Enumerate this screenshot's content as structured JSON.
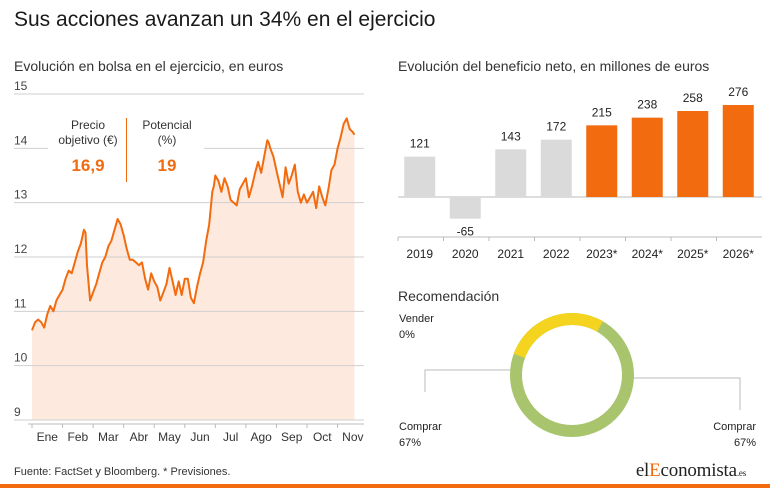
{
  "title": "Sus acciones avanzan un 34% en el ejercicio",
  "source": "Fuente: FactSet y Bloomberg. * Previsiones.",
  "logo": {
    "prefix": "el",
    "accent": "E",
    "rest": "conomista",
    "tld": ".es"
  },
  "colors": {
    "accent": "#f26b0f",
    "area_fill": "#fde9dd",
    "bar_grey": "#dadada",
    "donut_yellow": "#f5d41f",
    "donut_green": "#a8c56e"
  },
  "stock": {
    "subtitle": "Evolución en bolsa en el ejercicio, en euros",
    "price_target_label": "Precio objetivo (€)",
    "price_target_value": "16,9",
    "potential_label": "Potencial (%)",
    "potential_value": "19",
    "chart_data": {
      "type": "area",
      "y_range": [
        9,
        15
      ],
      "y_ticks": [
        "9",
        "10",
        "11",
        "12",
        "13",
        "14",
        "15"
      ],
      "x_labels": [
        "Ene",
        "Feb",
        "Mar",
        "Abr",
        "May",
        "Jun",
        "Jul",
        "Ago",
        "Sep",
        "Oct",
        "Nov"
      ],
      "x_range": [
        0,
        10.8
      ],
      "points": [
        [
          0.0,
          10.65
        ],
        [
          0.1,
          10.8
        ],
        [
          0.2,
          10.85
        ],
        [
          0.3,
          10.8
        ],
        [
          0.4,
          10.7
        ],
        [
          0.5,
          10.95
        ],
        [
          0.6,
          11.1
        ],
        [
          0.7,
          11.0
        ],
        [
          0.8,
          11.2
        ],
        [
          0.9,
          11.3
        ],
        [
          1.0,
          11.4
        ],
        [
          1.1,
          11.6
        ],
        [
          1.2,
          11.75
        ],
        [
          1.3,
          11.7
        ],
        [
          1.4,
          11.9
        ],
        [
          1.5,
          12.1
        ],
        [
          1.6,
          12.25
        ],
        [
          1.7,
          12.5
        ],
        [
          1.75,
          12.45
        ],
        [
          1.8,
          11.85
        ],
        [
          1.9,
          11.2
        ],
        [
          2.0,
          11.35
        ],
        [
          2.1,
          11.5
        ],
        [
          2.2,
          11.7
        ],
        [
          2.3,
          11.9
        ],
        [
          2.4,
          12.0
        ],
        [
          2.5,
          12.2
        ],
        [
          2.6,
          12.3
        ],
        [
          2.7,
          12.5
        ],
        [
          2.8,
          12.7
        ],
        [
          2.9,
          12.6
        ],
        [
          3.0,
          12.4
        ],
        [
          3.1,
          12.15
        ],
        [
          3.2,
          11.95
        ],
        [
          3.3,
          11.95
        ],
        [
          3.4,
          11.9
        ],
        [
          3.5,
          11.85
        ],
        [
          3.6,
          11.9
        ],
        [
          3.7,
          11.6
        ],
        [
          3.8,
          11.4
        ],
        [
          3.9,
          11.7
        ],
        [
          4.0,
          11.55
        ],
        [
          4.1,
          11.45
        ],
        [
          4.2,
          11.2
        ],
        [
          4.3,
          11.35
        ],
        [
          4.4,
          11.5
        ],
        [
          4.5,
          11.8
        ],
        [
          4.6,
          11.55
        ],
        [
          4.7,
          11.3
        ],
        [
          4.8,
          11.55
        ],
        [
          4.9,
          11.3
        ],
        [
          5.0,
          11.6
        ],
        [
          5.1,
          11.6
        ],
        [
          5.2,
          11.25
        ],
        [
          5.3,
          11.15
        ],
        [
          5.4,
          11.45
        ],
        [
          5.5,
          11.7
        ],
        [
          5.6,
          11.9
        ],
        [
          5.7,
          12.3
        ],
        [
          5.8,
          12.6
        ],
        [
          5.9,
          13.2
        ],
        [
          5.95,
          13.3
        ],
        [
          6.0,
          13.5
        ],
        [
          6.1,
          13.4
        ],
        [
          6.2,
          13.2
        ],
        [
          6.3,
          13.45
        ],
        [
          6.4,
          13.3
        ],
        [
          6.5,
          13.05
        ],
        [
          6.6,
          13.0
        ],
        [
          6.7,
          12.95
        ],
        [
          6.8,
          13.25
        ],
        [
          6.9,
          13.35
        ],
        [
          7.0,
          13.45
        ],
        [
          7.1,
          13.1
        ],
        [
          7.2,
          13.3
        ],
        [
          7.3,
          13.55
        ],
        [
          7.4,
          13.75
        ],
        [
          7.5,
          13.55
        ],
        [
          7.6,
          13.85
        ],
        [
          7.7,
          14.15
        ],
        [
          7.75,
          14.1
        ],
        [
          7.8,
          14.0
        ],
        [
          7.9,
          13.85
        ],
        [
          8.0,
          13.6
        ],
        [
          8.1,
          13.35
        ],
        [
          8.2,
          13.1
        ],
        [
          8.3,
          13.65
        ],
        [
          8.4,
          13.35
        ],
        [
          8.5,
          13.5
        ],
        [
          8.6,
          13.7
        ],
        [
          8.7,
          13.2
        ],
        [
          8.8,
          13.0
        ],
        [
          8.9,
          13.15
        ],
        [
          9.0,
          13.0
        ],
        [
          9.1,
          13.1
        ],
        [
          9.2,
          13.2
        ],
        [
          9.3,
          12.9
        ],
        [
          9.4,
          13.3
        ],
        [
          9.5,
          13.1
        ],
        [
          9.6,
          12.95
        ],
        [
          9.7,
          13.25
        ],
        [
          9.8,
          13.6
        ],
        [
          9.9,
          13.7
        ],
        [
          10.0,
          14.0
        ],
        [
          10.1,
          14.2
        ],
        [
          10.2,
          14.45
        ],
        [
          10.3,
          14.55
        ],
        [
          10.4,
          14.35
        ],
        [
          10.5,
          14.3
        ],
        [
          10.55,
          14.25
        ]
      ]
    }
  },
  "profit": {
    "subtitle": "Evolución del beneficio neto, en millones de euros",
    "chart_data": {
      "type": "bar",
      "categories": [
        "2019",
        "2020",
        "2021",
        "2022",
        "2023*",
        "2024*",
        "2025*",
        "2026*"
      ],
      "values": [
        121,
        -65,
        143,
        172,
        215,
        238,
        258,
        276
      ],
      "value_labels": [
        "121",
        "-65",
        "143",
        "172",
        "215",
        "238",
        "258",
        "276"
      ],
      "forecast": [
        false,
        false,
        false,
        false,
        true,
        true,
        true,
        true
      ]
    }
  },
  "recommendation": {
    "subtitle": "Recomendación",
    "chart_data": {
      "type": "pie",
      "slices": [
        {
          "name": "Vender",
          "value": 0,
          "label": "0%"
        },
        {
          "name": "Comprar",
          "value": 67,
          "label": "67%"
        }
      ]
    },
    "labels": {
      "sell_name": "Vender",
      "sell_pct": "0%",
      "left_name": "Comprar",
      "left_pct": "67%",
      "right_name": "Comprar",
      "right_pct": "67%"
    }
  }
}
